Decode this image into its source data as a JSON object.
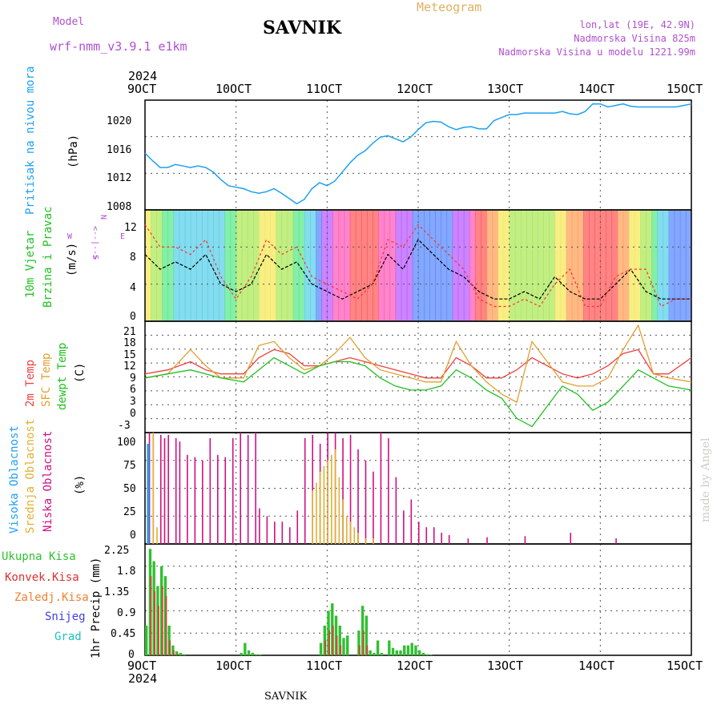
{
  "header": {
    "model_label": "Model",
    "model_name": "wrf-nmm_v3.9.1 e1km",
    "title": "SAVNIK",
    "meteogram": "Meteogram",
    "lonlat": "lon,lat (19E, 42.9N)",
    "elev": "Nadmorska Visina 825m",
    "elev_model": "Nadmorska Visina u modelu 1221.99m",
    "footer": "SAVNIK",
    "credit": "made by Angel"
  },
  "colors": {
    "pressure": "#1ea0f0",
    "wind_speed": "#000000",
    "wind_gust": "#ff3030",
    "temp_2m": "#f04040",
    "temp_sfc": "#e0a030",
    "dewpoint": "#20c020",
    "cloud_high": "#20a0f0",
    "cloud_mid": "#e0b030",
    "cloud_low": "#d01080",
    "precip_total": "#30c030",
    "precip_conv": "#e03030",
    "precip_frz": "#f08030",
    "snow": "#4040e0",
    "hail": "#20c0c0",
    "label_purple": "#b050d0",
    "label_orange": "#e0b060"
  },
  "time_axis": {
    "labels": [
      "9OCT",
      "10OCT",
      "11OCT",
      "12OCT",
      "13OCT",
      "14OCT",
      "15OCT"
    ],
    "year": "2024"
  },
  "panels": {
    "pressure": {
      "label": "Pritisak na nivou mora",
      "unit": "(hPa)",
      "ticks": [
        "1008",
        "1012",
        "1016",
        "1020"
      ]
    },
    "wind": {
      "label1": "10m Vjetar",
      "label2": "Brzina i Pravac",
      "unit": "(m/s)",
      "compass": [
        "N",
        "<--|-->",
        "S",
        "W",
        "E"
      ],
      "ticks": [
        "0",
        "4",
        "8",
        "12"
      ]
    },
    "temp": {
      "label1": "2m Temp",
      "label2": "SFC Temp",
      "label3": "dewpt Temp",
      "unit": "(C)",
      "ticks": [
        "-3",
        "0",
        "3",
        "6",
        "9",
        "12",
        "15",
        "18",
        "21"
      ]
    },
    "cloud": {
      "label1": "Visoka Oblacnost",
      "label2": "Srednja Oblacnost",
      "label3": "Niska Oblacnost",
      "unit": "(%)",
      "ticks": [
        "0",
        "25",
        "50",
        "75",
        "100"
      ]
    },
    "precip": {
      "labels": [
        "Ukupna Kisa",
        "Konvek.Kisa",
        "Zaledj.Kisa",
        "Snijeg",
        "Grad"
      ],
      "unit": "1hr Precip (mm)",
      "ticks": [
        "0",
        "0.45",
        "0.9",
        "1.35",
        "1.8",
        "2.25"
      ]
    }
  },
  "chart_data": [
    {
      "type": "line",
      "name": "pressure",
      "x_hours": [
        0,
        2,
        4,
        6,
        8,
        10,
        12,
        14,
        16,
        18,
        20,
        22,
        24,
        26,
        28,
        30,
        32,
        34,
        36,
        38,
        40,
        42,
        44,
        46,
        48,
        50,
        52,
        54,
        56,
        58,
        60,
        62,
        64,
        66,
        68,
        70,
        72,
        74,
        76,
        78,
        80,
        82,
        84,
        86,
        88,
        90,
        92,
        94,
        96,
        98,
        100,
        102,
        104,
        106,
        108,
        110,
        112,
        114,
        116,
        118,
        120,
        122,
        124,
        126,
        128,
        130,
        132,
        134,
        136,
        138,
        140,
        142,
        144
      ],
      "y": [
        1015.5,
        1014.5,
        1013.6,
        1013.6,
        1014.0,
        1013.8,
        1013.6,
        1013.8,
        1013.6,
        1013.0,
        1012.0,
        1011.2,
        1011.0,
        1010.8,
        1010.4,
        1010.2,
        1010.4,
        1010.8,
        1010.2,
        1009.5,
        1008.8,
        1009.4,
        1010.8,
        1011.6,
        1011.2,
        1011.8,
        1013.0,
        1014.2,
        1015.2,
        1015.8,
        1016.8,
        1017.6,
        1017.8,
        1017.4,
        1017.0,
        1017.6,
        1018.6,
        1019.5,
        1019.7,
        1019.6,
        1019.0,
        1018.6,
        1018.9,
        1019.0,
        1018.7,
        1018.7,
        1019.8,
        1020.2,
        1020.6,
        1020.6,
        1020.8,
        1020.8,
        1020.8,
        1020.8,
        1020.8,
        1021.0,
        1020.7,
        1020.6,
        1021.0,
        1022.0,
        1022.0,
        1021.6,
        1021.8,
        1022.0,
        1021.7,
        1021.6,
        1021.6,
        1021.6,
        1021.6,
        1021.6,
        1021.6,
        1021.8,
        1022.0
      ],
      "ylim": [
        1008,
        1022.5
      ]
    },
    {
      "type": "line",
      "name": "wind",
      "series": [
        {
          "name": "speed",
          "x_hours": [
            0,
            4,
            8,
            12,
            16,
            20,
            24,
            28,
            32,
            36,
            40,
            44,
            48,
            52,
            56,
            60,
            64,
            68,
            72,
            76,
            80,
            84,
            88,
            92,
            96,
            100,
            104,
            108,
            112,
            116,
            120,
            124,
            128,
            132,
            136,
            140,
            144
          ],
          "values": [
            8,
            6,
            7,
            6,
            8,
            4,
            3,
            4,
            8,
            6,
            7,
            4,
            3,
            2,
            3,
            4,
            8,
            6,
            10,
            8,
            6,
            5,
            3,
            2,
            2,
            3,
            2,
            5,
            3,
            2,
            2,
            4,
            6,
            3,
            2,
            2,
            2
          ]
        },
        {
          "name": "gust",
          "x_hours": [
            0,
            4,
            8,
            12,
            16,
            20,
            24,
            28,
            32,
            36,
            40,
            44,
            48,
            52,
            56,
            60,
            64,
            68,
            72,
            76,
            80,
            84,
            88,
            92,
            96,
            100,
            104,
            108,
            112,
            116,
            120,
            124,
            128,
            132,
            136,
            140,
            144
          ],
          "values": [
            12,
            9,
            9,
            8,
            10,
            5,
            2,
            5,
            10,
            8,
            9,
            5,
            4,
            3,
            2,
            4,
            10,
            9,
            12,
            10,
            8,
            6,
            2,
            1,
            1,
            2,
            1,
            4,
            6,
            1,
            1,
            5,
            6,
            6,
            1,
            2,
            2
          ]
        }
      ],
      "ylim": [
        -1,
        14
      ]
    },
    {
      "type": "line",
      "name": "temperature",
      "series": [
        {
          "name": "t2m",
          "x_hours": [
            0,
            6,
            12,
            16,
            20,
            26,
            30,
            34,
            38,
            42,
            46,
            50,
            54,
            58,
            62,
            66,
            70,
            74,
            78,
            82,
            86,
            90,
            94,
            98,
            102,
            106,
            110,
            114,
            118,
            122,
            126,
            130,
            134,
            138,
            144
          ],
          "values": [
            10,
            11,
            13,
            11,
            10,
            10,
            14,
            16,
            15,
            12,
            12,
            13,
            14,
            13,
            12,
            11,
            10,
            9,
            9,
            14,
            12,
            9,
            9,
            11,
            14,
            12,
            10,
            9,
            10,
            12,
            15,
            16,
            10,
            10,
            14
          ]
        },
        {
          "name": "tsfc",
          "x_hours": [
            0,
            6,
            12,
            16,
            20,
            26,
            30,
            34,
            38,
            42,
            46,
            50,
            54,
            58,
            62,
            66,
            70,
            74,
            78,
            82,
            86,
            90,
            94,
            98,
            102,
            106,
            110,
            114,
            118,
            122,
            126,
            130,
            134,
            138,
            144
          ],
          "values": [
            9,
            10,
            16,
            12,
            9,
            9,
            17,
            18,
            14,
            11,
            12,
            15,
            19,
            14,
            11,
            10,
            9,
            8,
            8,
            18,
            12,
            8,
            5,
            3,
            18,
            13,
            8,
            7,
            7,
            9,
            16,
            22,
            10,
            9,
            8
          ]
        },
        {
          "name": "dewpoint",
          "x_hours": [
            0,
            6,
            12,
            16,
            20,
            26,
            30,
            34,
            38,
            42,
            46,
            50,
            54,
            58,
            62,
            66,
            70,
            74,
            78,
            82,
            86,
            90,
            94,
            98,
            102,
            106,
            110,
            114,
            118,
            122,
            126,
            130,
            134,
            138,
            144
          ],
          "values": [
            9,
            10,
            11,
            10,
            9,
            8,
            11,
            14,
            12,
            10,
            12,
            13,
            13,
            12,
            9,
            7,
            6,
            6,
            7,
            11,
            9,
            6,
            4,
            -1,
            -3,
            2,
            7,
            5,
            1,
            3,
            7,
            11,
            9,
            7,
            6
          ]
        }
      ],
      "ylim": [
        -4.5,
        23
      ]
    },
    {
      "type": "bar",
      "name": "cloud",
      "series": [
        {
          "name": "low",
          "x_hours": [
            1,
            2,
            4,
            5,
            6,
            8,
            9,
            11,
            13,
            15,
            17,
            19,
            21,
            23,
            25,
            27,
            29,
            30,
            32,
            34,
            36,
            38,
            40,
            42,
            44,
            46,
            48,
            50,
            52,
            54,
            56,
            58,
            60,
            62,
            64,
            66,
            68,
            70,
            72,
            74,
            76,
            78,
            80,
            85,
            90,
            100,
            112,
            124
          ],
          "values": [
            100,
            100,
            98,
            95,
            98,
            95,
            92,
            80,
            78,
            75,
            95,
            80,
            78,
            95,
            100,
            98,
            100,
            32,
            25,
            20,
            20,
            15,
            30,
            95,
            98,
            90,
            100,
            100,
            95,
            98,
            85,
            75,
            65,
            100,
            95,
            60,
            30,
            40,
            20,
            15,
            15,
            10,
            8,
            5,
            6,
            7,
            10,
            5
          ]
        },
        {
          "name": "mid",
          "x_hours": [
            2,
            3,
            44,
            45,
            46,
            47,
            48,
            49,
            50,
            51,
            52,
            53,
            54,
            55,
            56,
            58,
            60
          ],
          "values": [
            100,
            15,
            48,
            55,
            65,
            70,
            75,
            80,
            85,
            60,
            40,
            25,
            20,
            15,
            10,
            5,
            5
          ]
        },
        {
          "name": "high",
          "x_hours": [
            0.5
          ],
          "values": [
            90
          ]
        }
      ],
      "ylim": [
        0,
        100
      ]
    },
    {
      "type": "bar",
      "name": "precip",
      "series": [
        {
          "name": "total",
          "x_hours": [
            0,
            1,
            2,
            3,
            4,
            5,
            6,
            7,
            8,
            9,
            10,
            25,
            26,
            27,
            28,
            29,
            30,
            46,
            47,
            48,
            49,
            50,
            51,
            52,
            53,
            56,
            57,
            58,
            59,
            60,
            61,
            62,
            64,
            65,
            66,
            67,
            68,
            69,
            70,
            71,
            72,
            73,
            74,
            75
          ],
          "values": [
            0.6,
            2.15,
            1.9,
            1.4,
            1.8,
            1.6,
            0.6,
            0.2,
            0.08,
            0.05,
            0.02,
            0.05,
            0.25,
            0.1,
            0.05,
            0.02,
            0.01,
            0.25,
            0.6,
            0.9,
            1.05,
            0.8,
            0.6,
            0.35,
            0.4,
            0.5,
            1.0,
            0.8,
            0.1,
            0.05,
            0.3,
            0.05,
            0.3,
            0.15,
            0.1,
            0.1,
            0.2,
            0.2,
            0.25,
            0.2,
            0.1,
            0.05,
            0.02,
            0.01
          ]
        },
        {
          "name": "convective",
          "x_hours": [
            1,
            2,
            3,
            4,
            5,
            6,
            7,
            8,
            47,
            48,
            49,
            50,
            51,
            56,
            57,
            58
          ],
          "values": [
            1.6,
            1.3,
            1.0,
            1.4,
            1.2,
            0.3,
            0.1,
            0.03,
            0.3,
            0.5,
            0.6,
            0.4,
            0.2,
            0.2,
            0.5,
            0.2
          ]
        }
      ],
      "ylim": [
        0,
        2.25
      ]
    }
  ]
}
